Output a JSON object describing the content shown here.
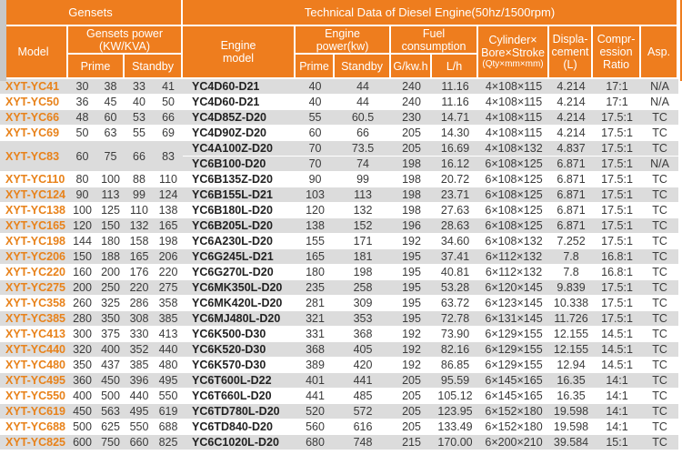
{
  "table": {
    "colors": {
      "header_bg": "#ee7d1e",
      "row_shade": "#dcdcdc",
      "genset_model_text": "#e8821a",
      "data_text": "#3a3a3a",
      "header_text": "#ffffff"
    },
    "header": {
      "gensets": "Gensets",
      "technical": "Technical Data of Diesel Engine(50hz/1500rpm)",
      "model": "Model",
      "gensets_power_l1": "Gensets power",
      "gensets_power_l2": "(KW/KVA)",
      "prime": "Prime",
      "standby": "Standby",
      "engine_model_l1": "Engine",
      "engine_model_l2": "model",
      "engine_power_l1": "Engine",
      "engine_power_l2": "power(kw)",
      "fuel_l1": "Fuel",
      "fuel_l2": "consumption",
      "g_kwh": "G/kw.h",
      "l_h": "L/h",
      "cylinder_l1": "Cylinder×",
      "cylinder_l2": "Bore×Stroke",
      "cylinder_l3": "(Qty×mm×mm)",
      "displacement_l1": "Displa-",
      "displacement_l2": "cement",
      "displacement_l3": "(L)",
      "compression_l1": "Compr-",
      "compression_l2": "ession",
      "compression_l3": "Ratio",
      "asp": "Asp."
    },
    "rows": [
      {
        "model": "XYT-YC41",
        "power": [
          "30",
          "38",
          "33",
          "41"
        ],
        "engines": [
          {
            "engine": "YC4D60-D21",
            "prime": "40",
            "standby": "44",
            "g_kwh": "240",
            "l_h": "11.16",
            "cylinder": "4×108×115",
            "displacement": "4.214",
            "compression": "17:1",
            "asp": "N/A"
          }
        ]
      },
      {
        "model": "XYT-YC50",
        "power": [
          "36",
          "45",
          "40",
          "50"
        ],
        "engines": [
          {
            "engine": "YC4D60-D21",
            "prime": "40",
            "standby": "44",
            "g_kwh": "240",
            "l_h": "11.16",
            "cylinder": "4×108×115",
            "displacement": "4.214",
            "compression": "17:1",
            "asp": "N/A"
          }
        ]
      },
      {
        "model": "XYT-YC66",
        "power": [
          "48",
          "60",
          "53",
          "66"
        ],
        "engines": [
          {
            "engine": "YC4D85Z-D20",
            "prime": "55",
            "standby": "60.5",
            "g_kwh": "230",
            "l_h": "14.71",
            "cylinder": "4×108×115",
            "displacement": "4.214",
            "compression": "17.5:1",
            "asp": "TC"
          }
        ]
      },
      {
        "model": "XYT-YC69",
        "power": [
          "50",
          "63",
          "55",
          "69"
        ],
        "engines": [
          {
            "engine": "YC4D90Z-D20",
            "prime": "60",
            "standby": "66",
            "g_kwh": "205",
            "l_h": "14.30",
            "cylinder": "4×108×115",
            "displacement": "4.214",
            "compression": "17.5:1",
            "asp": "TC"
          }
        ]
      },
      {
        "model": "XYT-YC83",
        "power": [
          "60",
          "75",
          "66",
          "83"
        ],
        "engines": [
          {
            "engine": "YC4A100Z-D20",
            "prime": "70",
            "standby": "73.5",
            "g_kwh": "205",
            "l_h": "16.69",
            "cylinder": "4×108×132",
            "displacement": "4.837",
            "compression": "17.5:1",
            "asp": "TC"
          },
          {
            "engine": "YC6B100-D20",
            "prime": "70",
            "standby": "74",
            "g_kwh": "198",
            "l_h": "16.12",
            "cylinder": "6×108×125",
            "displacement": "6.871",
            "compression": "17.5:1",
            "asp": "N/A"
          }
        ]
      },
      {
        "model": "XYT-YC110",
        "power": [
          "80",
          "100",
          "88",
          "110"
        ],
        "engines": [
          {
            "engine": "YC6B135Z-D20",
            "prime": "90",
            "standby": "99",
            "g_kwh": "198",
            "l_h": "20.72",
            "cylinder": "6×108×125",
            "displacement": "6.871",
            "compression": "17.5:1",
            "asp": "TC"
          }
        ]
      },
      {
        "model": "XYT-YC124",
        "power": [
          "90",
          "113",
          "99",
          "124"
        ],
        "engines": [
          {
            "engine": "YC6B155L-D21",
            "prime": "103",
            "standby": "113",
            "g_kwh": "198",
            "l_h": "23.71",
            "cylinder": "6×108×125",
            "displacement": "6.871",
            "compression": "17.5:1",
            "asp": "TC"
          }
        ]
      },
      {
        "model": "XYT-YC138",
        "power": [
          "100",
          "125",
          "110",
          "138"
        ],
        "engines": [
          {
            "engine": "YC6B180L-D20",
            "prime": "120",
            "standby": "132",
            "g_kwh": "198",
            "l_h": "27.63",
            "cylinder": "6×108×125",
            "displacement": "6.871",
            "compression": "17.5:1",
            "asp": "TC"
          }
        ]
      },
      {
        "model": "XYT-YC165",
        "power": [
          "120",
          "150",
          "132",
          "165"
        ],
        "engines": [
          {
            "engine": "YC6B205L-D20",
            "prime": "138",
            "standby": "152",
            "g_kwh": "196",
            "l_h": "28.63",
            "cylinder": "6×108×125",
            "displacement": "6.871",
            "compression": "17.5:1",
            "asp": "TC"
          }
        ]
      },
      {
        "model": "XYT-YC198",
        "power": [
          "144",
          "180",
          "158",
          "198"
        ],
        "engines": [
          {
            "engine": "YC6A230L-D20",
            "prime": "155",
            "standby": "171",
            "g_kwh": "192",
            "l_h": "34.60",
            "cylinder": "6×108×132",
            "displacement": "7.252",
            "compression": "17.5:1",
            "asp": "TC"
          }
        ]
      },
      {
        "model": "XYT-YC206",
        "power": [
          "150",
          "188",
          "165",
          "206"
        ],
        "engines": [
          {
            "engine": "YC6G245L-D21",
            "prime": "165",
            "standby": "181",
            "g_kwh": "195",
            "l_h": "37.41",
            "cylinder": "6×112×132",
            "displacement": "7.8",
            "compression": "16.8:1",
            "asp": "TC"
          }
        ]
      },
      {
        "model": "XYT-YC220",
        "power": [
          "160",
          "200",
          "176",
          "220"
        ],
        "engines": [
          {
            "engine": "YC6G270L-D20",
            "prime": "180",
            "standby": "198",
            "g_kwh": "195",
            "l_h": "40.81",
            "cylinder": "6×112×132",
            "displacement": "7.8",
            "compression": "16.8:1",
            "asp": "TC"
          }
        ]
      },
      {
        "model": "XYT-YC275",
        "power": [
          "200",
          "250",
          "220",
          "275"
        ],
        "engines": [
          {
            "engine": "YC6MK350L-D20",
            "prime": "235",
            "standby": "258",
            "g_kwh": "195",
            "l_h": "53.28",
            "cylinder": "6×120×145",
            "displacement": "9.839",
            "compression": "17.5:1",
            "asp": "TC"
          }
        ]
      },
      {
        "model": "XYT-YC358",
        "power": [
          "260",
          "325",
          "286",
          "358"
        ],
        "engines": [
          {
            "engine": "YC6MK420L-D20",
            "prime": "281",
            "standby": "309",
            "g_kwh": "195",
            "l_h": "63.72",
            "cylinder": "6×123×145",
            "displacement": "10.338",
            "compression": "17.5:1",
            "asp": "TC"
          }
        ]
      },
      {
        "model": "XYT-YC385",
        "power": [
          "280",
          "350",
          "308",
          "385"
        ],
        "engines": [
          {
            "engine": "YC6MJ480L-D20",
            "prime": "321",
            "standby": "353",
            "g_kwh": "195",
            "l_h": "72.78",
            "cylinder": "6×131×145",
            "displacement": "11.726",
            "compression": "17.5:1",
            "asp": "TC"
          }
        ]
      },
      {
        "model": "XYT-YC413",
        "power": [
          "300",
          "375",
          "330",
          "413"
        ],
        "engines": [
          {
            "engine": "YC6K500-D30",
            "prime": "331",
            "standby": "368",
            "g_kwh": "192",
            "l_h": "73.90",
            "cylinder": "6×129×155",
            "displacement": "12.155",
            "compression": "14.5:1",
            "asp": "TC"
          }
        ]
      },
      {
        "model": "XYT-YC440",
        "power": [
          "320",
          "400",
          "352",
          "440"
        ],
        "engines": [
          {
            "engine": "YC6K520-D30",
            "prime": "368",
            "standby": "405",
            "g_kwh": "192",
            "l_h": "82.16",
            "cylinder": "6×129×155",
            "displacement": "12.155",
            "compression": "14.5:1",
            "asp": "TC"
          }
        ]
      },
      {
        "model": "XYT-YC480",
        "power": [
          "350",
          "437",
          "385",
          "480"
        ],
        "engines": [
          {
            "engine": "YC6K570-D30",
            "prime": "389",
            "standby": "420",
            "g_kwh": "192",
            "l_h": "86.85",
            "cylinder": "6×129×155",
            "displacement": "12.94",
            "compression": "14.5:1",
            "asp": "TC"
          }
        ]
      },
      {
        "model": "XYT-YC495",
        "power": [
          "360",
          "450",
          "396",
          "495"
        ],
        "engines": [
          {
            "engine": "YC6T600L-D22",
            "prime": "401",
            "standby": "441",
            "g_kwh": "205",
            "l_h": "95.59",
            "cylinder": "6×145×165",
            "displacement": "16.35",
            "compression": "14:1",
            "asp": "TC"
          }
        ]
      },
      {
        "model": "XYT-YC550",
        "power": [
          "400",
          "500",
          "440",
          "550"
        ],
        "engines": [
          {
            "engine": "YC6T660L-D20",
            "prime": "441",
            "standby": "485",
            "g_kwh": "205",
            "l_h": "105.12",
            "cylinder": "6×145×165",
            "displacement": "16.35",
            "compression": "14:1",
            "asp": "TC"
          }
        ]
      },
      {
        "model": "XYT-YC619",
        "power": [
          "450",
          "563",
          "495",
          "619"
        ],
        "engines": [
          {
            "engine": "YC6TD780L-D20",
            "prime": "520",
            "standby": "572",
            "g_kwh": "205",
            "l_h": "123.95",
            "cylinder": "6×152×180",
            "displacement": "19.598",
            "compression": "14:1",
            "asp": "TC"
          }
        ]
      },
      {
        "model": "XYT-YC688",
        "power": [
          "500",
          "625",
          "550",
          "688"
        ],
        "engines": [
          {
            "engine": "YC6TD840-D20",
            "prime": "560",
            "standby": "616",
            "g_kwh": "205",
            "l_h": "133.49",
            "cylinder": "6×152×180",
            "displacement": "19.598",
            "compression": "14:1",
            "asp": "TC"
          }
        ]
      },
      {
        "model": "XYT-YC825",
        "power": [
          "600",
          "750",
          "660",
          "825"
        ],
        "engines": [
          {
            "engine": "YC6C1020L-D20",
            "prime": "680",
            "standby": "748",
            "g_kwh": "215",
            "l_h": "170.00",
            "cylinder": "6×200×210",
            "displacement": "39.584",
            "compression": "15:1",
            "asp": "TC"
          }
        ]
      }
    ]
  }
}
